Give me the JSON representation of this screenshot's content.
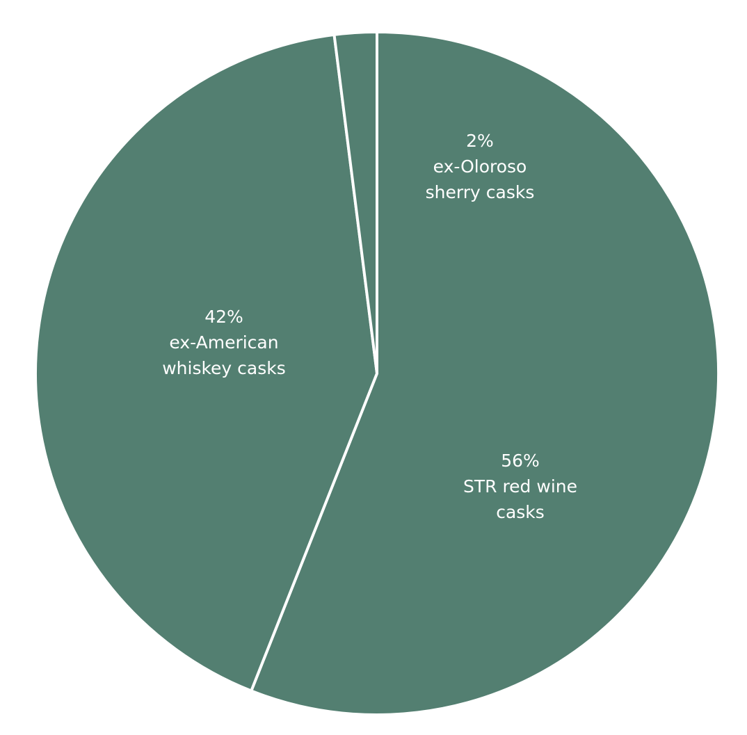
{
  "chart_data": {
    "type": "pie",
    "categories": [
      "STR red wine casks",
      "ex-American whiskey casks",
      "ex-Oloroso sherry casks"
    ],
    "values": [
      56,
      42,
      2
    ],
    "value_labels": [
      "56%",
      "42%",
      "2%"
    ],
    "color": "#537f71"
  }
}
